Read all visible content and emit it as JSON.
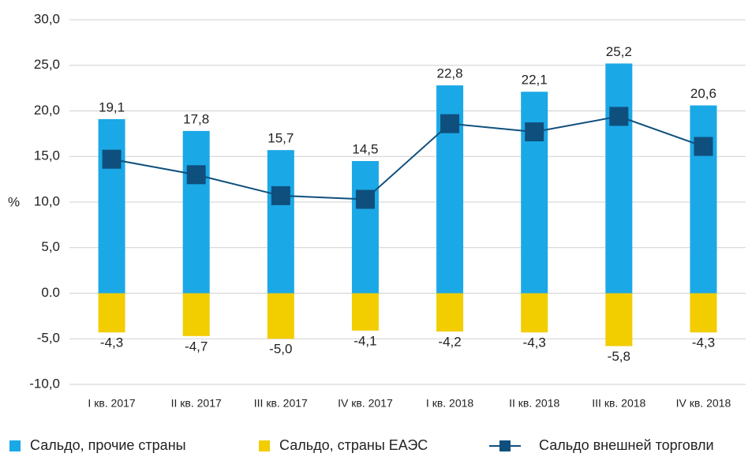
{
  "chart_data": {
    "type": "bar",
    "ylabel": "%",
    "categories": [
      "I кв. 2017",
      "II кв. 2017",
      "III кв. 2017",
      "IV кв. 2017",
      "I кв. 2018",
      "II кв. 2018",
      "III кв. 2018",
      "IV кв. 2018"
    ],
    "series": [
      {
        "name": "Сальдо, прочие страны",
        "color": "#1ba8e6",
        "type": "bar",
        "values": [
          19.1,
          17.8,
          15.7,
          14.5,
          22.8,
          22.1,
          25.2,
          20.6
        ],
        "value_labels": [
          "19,1",
          "17,8",
          "15,7",
          "14,5",
          "22,8",
          "22,1",
          "25,2",
          "20,6"
        ]
      },
      {
        "name": "Сальдо, страны ЕАЭС",
        "color": "#f2cd00",
        "type": "bar",
        "values": [
          -4.3,
          -4.7,
          -5.0,
          -4.1,
          -4.2,
          -4.3,
          -5.8,
          -4.3
        ],
        "value_labels": [
          "-4,3",
          "-4,7",
          "-5,0",
          "-4,1",
          "-4,2",
          "-4,3",
          "-5,8",
          "-4,3"
        ]
      },
      {
        "name": "Сальдо внешней торговли",
        "color": "#0f4f7d",
        "type": "line",
        "values": [
          14.7,
          13.0,
          10.7,
          10.3,
          18.6,
          17.7,
          19.4,
          16.1
        ]
      }
    ],
    "ylim": [
      -10,
      30
    ],
    "yticks": [
      {
        "value": -10,
        "label": "-10,0"
      },
      {
        "value": -5,
        "label": "-5,0"
      },
      {
        "value": 0,
        "label": "0.0"
      },
      {
        "value": 5,
        "label": "5,0"
      },
      {
        "value": 10,
        "label": "10,0"
      },
      {
        "value": 15,
        "label": "15,0"
      },
      {
        "value": 20,
        "label": "20,0"
      },
      {
        "value": 25,
        "label": "25,0"
      },
      {
        "value": 30,
        "label": "30,0"
      }
    ],
    "grid": true
  }
}
